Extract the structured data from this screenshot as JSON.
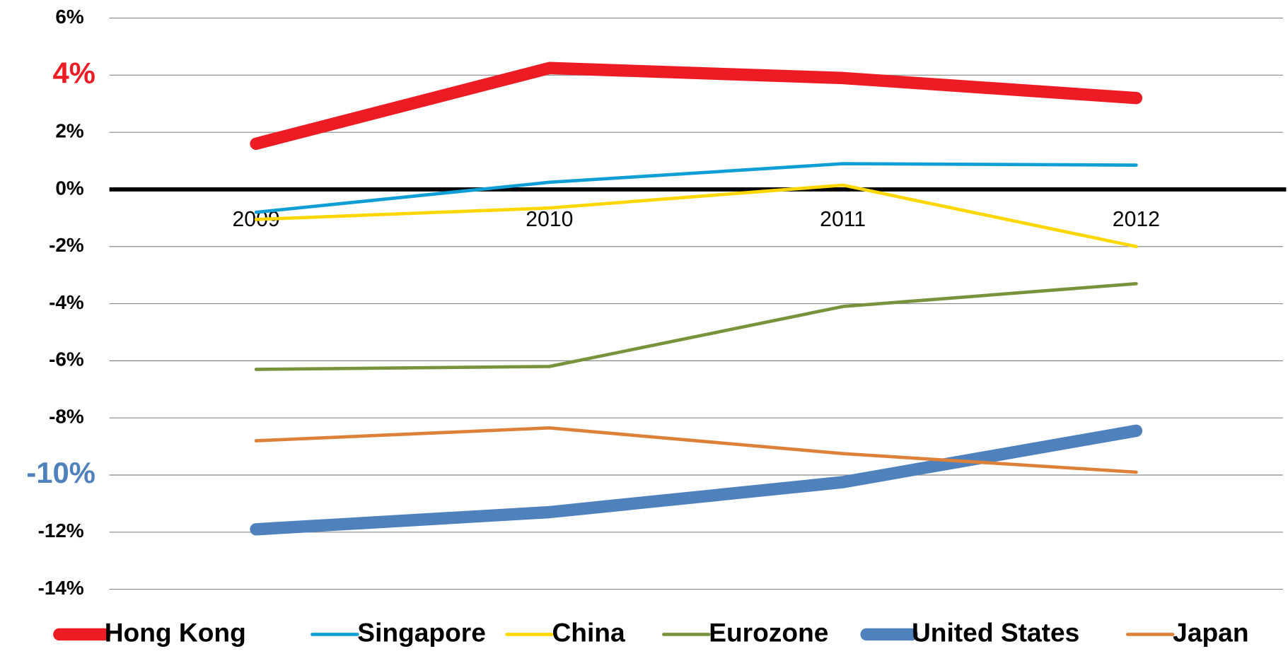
{
  "chart_data": {
    "type": "line",
    "categories": [
      "2009",
      "2010",
      "2011",
      "2012"
    ],
    "series": [
      {
        "name": "Hong Kong",
        "color": "#ed1c24",
        "emphasis": true,
        "values": [
          1.6,
          4.25,
          3.9,
          3.2
        ]
      },
      {
        "name": "Singapore",
        "color": "#0f9ed5",
        "values": [
          -0.8,
          0.25,
          0.9,
          0.85
        ]
      },
      {
        "name": "China",
        "color": "#ffd700",
        "values": [
          -1.05,
          -0.65,
          0.15,
          -2.0
        ]
      },
      {
        "name": "Eurozone",
        "color": "#77933c",
        "values": [
          -6.3,
          -6.2,
          -4.1,
          -3.3
        ]
      },
      {
        "name": "United States",
        "color": "#4f81bd",
        "emphasis": true,
        "values": [
          -11.9,
          -11.3,
          -10.25,
          -8.45
        ]
      },
      {
        "name": "Japan",
        "color": "#dd8139",
        "values": [
          -8.8,
          -8.35,
          -9.25,
          -9.9
        ]
      }
    ],
    "ylim": [
      -14,
      6
    ],
    "yticks": [
      {
        "value": -14,
        "label": "-14%"
      },
      {
        "value": -12,
        "label": "-12%"
      },
      {
        "value": -10,
        "label": "-10%",
        "color": "#4f81bd"
      },
      {
        "value": -8,
        "label": "-8%"
      },
      {
        "value": -6,
        "label": "-6%"
      },
      {
        "value": -4,
        "label": "-4%"
      },
      {
        "value": -2,
        "label": "-2%"
      },
      {
        "value": 0,
        "label": "0%"
      },
      {
        "value": 2,
        "label": "2%"
      },
      {
        "value": 4,
        "label": "4%",
        "color": "#ed1c24"
      },
      {
        "value": 6,
        "label": "6%"
      }
    ],
    "grid": true,
    "legend": "bottom"
  }
}
